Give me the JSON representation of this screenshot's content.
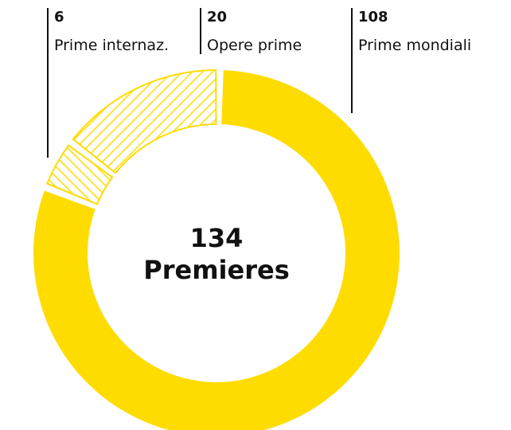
{
  "chart_data": {
    "type": "donut",
    "categories": [
      "Prime mondiali",
      "Prime internaz.",
      "Opere prime"
    ],
    "values": [
      108,
      6,
      20
    ],
    "styles": [
      "solid",
      "hatched",
      "hatched"
    ],
    "color": "#ffdc00",
    "center_value": 134,
    "center_label": "Premieres"
  }
}
